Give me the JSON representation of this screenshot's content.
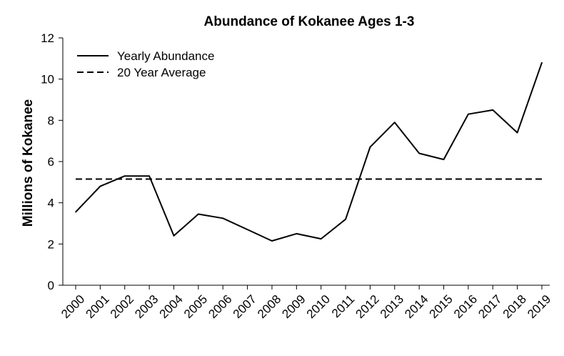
{
  "chart_data": {
    "type": "line",
    "title": "Abundance of Kokanee Ages 1-3",
    "xlabel": "",
    "ylabel": "Millions of Kokanee",
    "x": [
      "2000",
      "2001",
      "2002",
      "2003",
      "2004",
      "2005",
      "2006",
      "2007",
      "2008",
      "2009",
      "2010",
      "2011",
      "2012",
      "2013",
      "2014",
      "2015",
      "2016",
      "2017",
      "2018",
      "2019"
    ],
    "ylim": [
      0,
      12
    ],
    "yticks": [
      "0",
      "2",
      "4",
      "6",
      "8",
      "10",
      "12"
    ],
    "grid": false,
    "legend_position": "top-left",
    "series": [
      {
        "name": "Yearly Abundance",
        "style": "solid",
        "color": "#000000",
        "values": [
          3.55,
          4.8,
          5.3,
          5.3,
          2.4,
          3.45,
          3.25,
          2.7,
          2.15,
          2.5,
          2.25,
          3.2,
          6.7,
          7.9,
          6.4,
          6.1,
          8.3,
          8.5,
          7.4,
          10.8
        ]
      },
      {
        "name": "20 Year Average",
        "style": "dashed",
        "color": "#000000",
        "values": [
          5.15,
          5.15,
          5.15,
          5.15,
          5.15,
          5.15,
          5.15,
          5.15,
          5.15,
          5.15,
          5.15,
          5.15,
          5.15,
          5.15,
          5.15,
          5.15,
          5.15,
          5.15,
          5.15,
          5.15
        ]
      }
    ]
  }
}
